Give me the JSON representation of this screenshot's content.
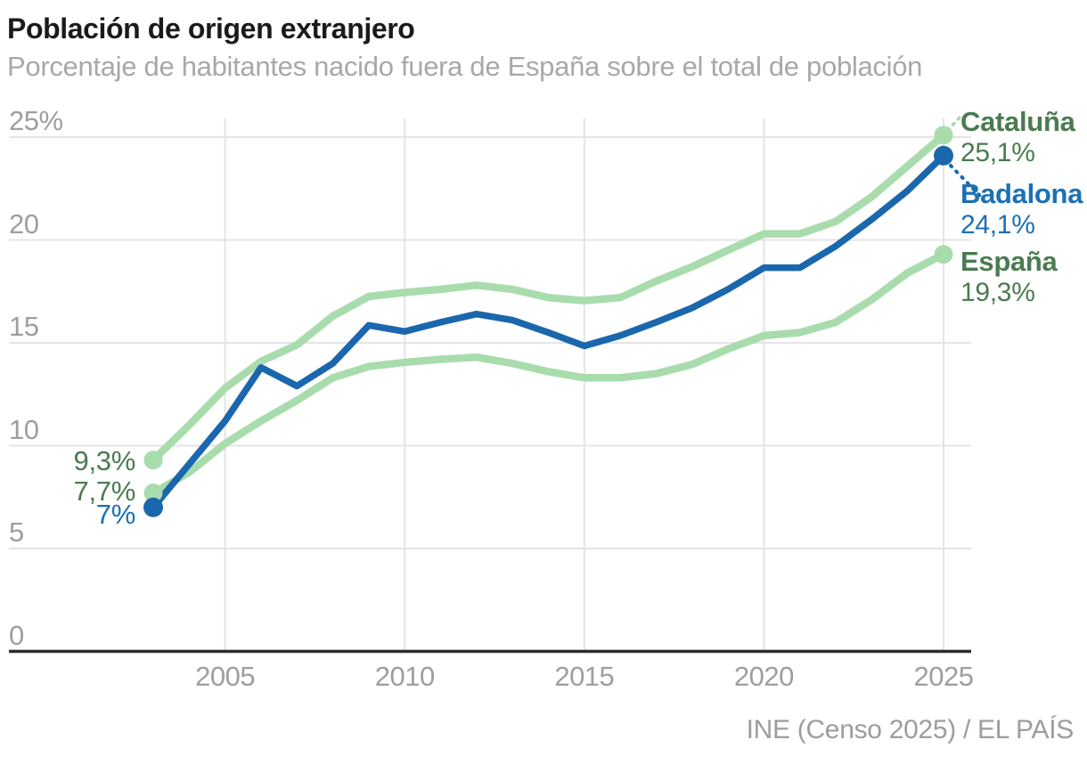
{
  "header": {},
  "footer": {
    "source": "INE (Censo 2025) / EL PAÍS"
  },
  "colors": {
    "title_text": "#1a1a1a",
    "subtitle_text": "#a8a8a8",
    "tick_text": "#9e9e9e",
    "source_text": "#9d9d9d",
    "grid": "#e4e4e4",
    "axis": "#2c2c2c",
    "badalona_blue": "#1b67ad",
    "badalona_text": "#1c70b4",
    "light_green": "#a9dcad",
    "green_text": "#4b7b51"
  },
  "chart_data": {
    "type": "line",
    "title": "Población de origen extranjero",
    "subtitle": "Porcentaje de habitantes nacido fuera de España sobre el total de población",
    "xlabel": "",
    "ylabel": "",
    "xlim": [
      2003,
      2025
    ],
    "ylim": [
      0,
      25
    ],
    "grid": true,
    "legend_position": "right-end-labels",
    "x": [
      2003,
      2004,
      2005,
      2006,
      2007,
      2008,
      2009,
      2010,
      2011,
      2012,
      2013,
      2014,
      2015,
      2016,
      2017,
      2018,
      2019,
      2020,
      2021,
      2022,
      2023,
      2024,
      2025
    ],
    "xticks": [
      2005,
      2010,
      2015,
      2020,
      2025
    ],
    "yticks": [
      {
        "value": 25,
        "label": "25%"
      },
      {
        "value": 20,
        "label": "20"
      },
      {
        "value": 15,
        "label": "15"
      },
      {
        "value": 10,
        "label": "10"
      },
      {
        "value": 5,
        "label": "5"
      },
      {
        "value": 0,
        "label": "0"
      }
    ],
    "series": [
      {
        "id": "cataluna",
        "name": "Cataluña",
        "color": "#a9dcad",
        "label_color": "#4b7b51",
        "start_label": "9,3%",
        "end_label": "25,1%",
        "values": [
          9.3,
          11.0,
          12.8,
          14.1,
          14.9,
          16.3,
          17.25,
          17.45,
          17.6,
          17.8,
          17.6,
          17.2,
          17.05,
          17.2,
          18.0,
          18.7,
          19.5,
          20.3,
          20.3,
          20.9,
          22.1,
          23.6,
          25.1
        ]
      },
      {
        "id": "badalona",
        "name": "Badalona",
        "color": "#1b67ad",
        "label_color": "#1c70b4",
        "start_label": "7%",
        "end_label": "24,1%",
        "values": [
          7.0,
          9.1,
          11.2,
          13.8,
          12.9,
          14.0,
          15.85,
          15.55,
          16.0,
          16.4,
          16.1,
          15.5,
          14.85,
          15.35,
          16.0,
          16.7,
          17.6,
          18.65,
          18.65,
          19.7,
          21.0,
          22.4,
          24.1
        ]
      },
      {
        "id": "espana",
        "name": "España",
        "color": "#a9dcad",
        "label_color": "#4b7b51",
        "start_label": "7,7%",
        "end_label": "19,3%",
        "values": [
          7.7,
          8.7,
          10.1,
          11.2,
          12.2,
          13.3,
          13.85,
          14.05,
          14.2,
          14.3,
          14.0,
          13.6,
          13.3,
          13.3,
          13.5,
          13.95,
          14.7,
          15.35,
          15.5,
          16.0,
          17.1,
          18.4,
          19.3
        ]
      }
    ]
  }
}
